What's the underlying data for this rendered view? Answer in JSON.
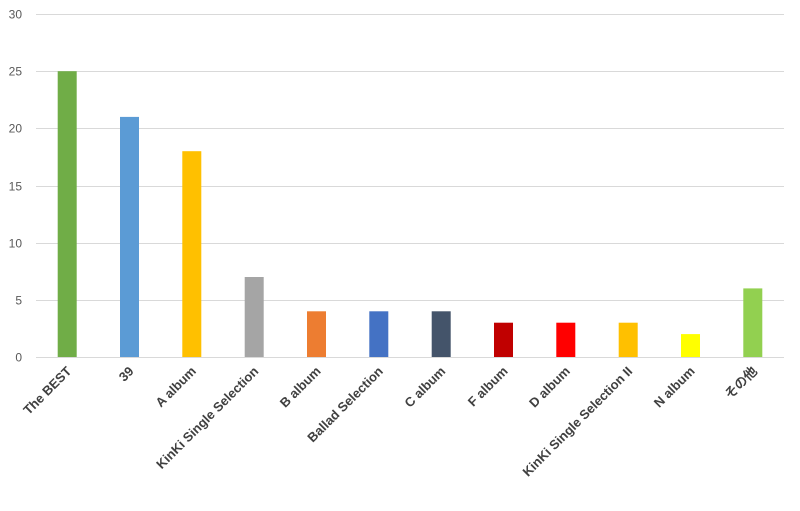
{
  "chart_data": {
    "type": "bar",
    "title": "",
    "xlabel": "",
    "ylabel": "",
    "ylim": [
      0,
      30
    ],
    "yticks": [
      0,
      5,
      10,
      15,
      20,
      25,
      30
    ],
    "grid": true,
    "legend": "none",
    "categories": [
      "The BEST",
      "39",
      "A album",
      "KinKi Single Selection",
      "B album",
      "Ballad Selection",
      "C album",
      "F album",
      "D album",
      "KinKi Single Selection II",
      "N album",
      "その他"
    ],
    "values": [
      25,
      21,
      18,
      7,
      4,
      4,
      4,
      3,
      3,
      3,
      2,
      6
    ],
    "colors": [
      "#70ad47",
      "#5b9bd5",
      "#ffc000",
      "#a5a5a5",
      "#ed7d31",
      "#4472c4",
      "#44546a",
      "#c00000",
      "#ff0000",
      "#ffc000",
      "#ffff00",
      "#92d050"
    ]
  }
}
